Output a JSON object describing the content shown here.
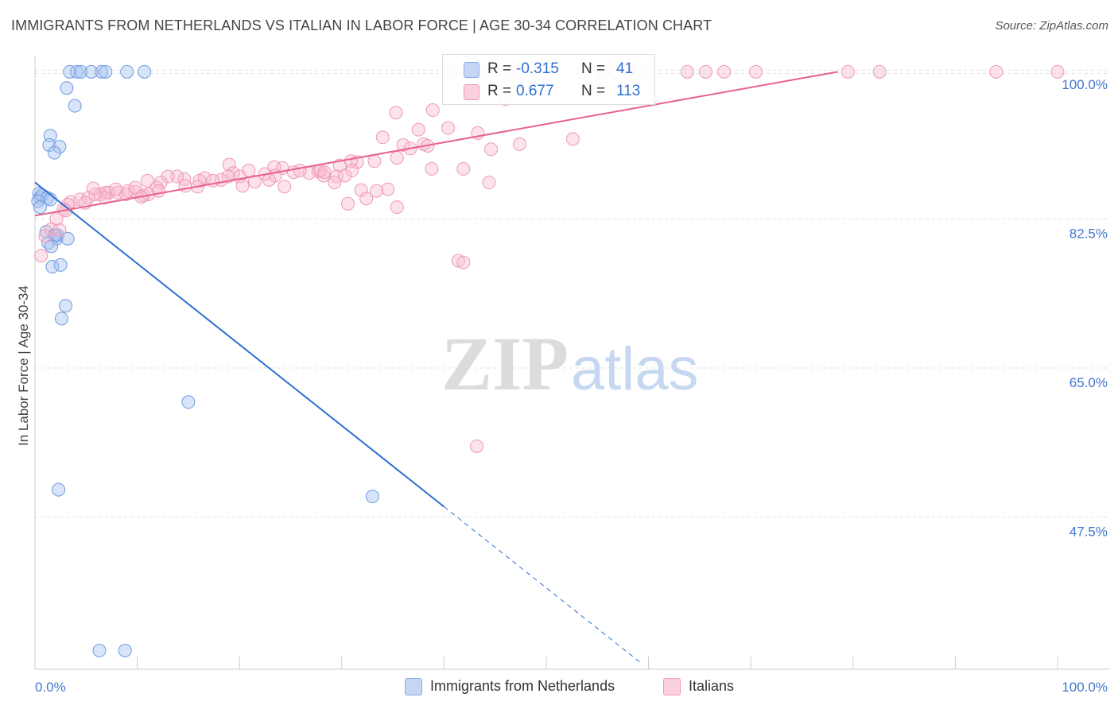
{
  "header": {
    "title": "IMMIGRANTS FROM NETHERLANDS VS ITALIAN IN LABOR FORCE | AGE 30-34 CORRELATION CHART",
    "source": "Source: ZipAtlas.com"
  },
  "watermark": {
    "zip": "ZIP",
    "atlas": "atlas"
  },
  "legend": {
    "r_label": "R =",
    "n_label": "N =",
    "series": [
      {
        "name": "Immigrants from Netherlands",
        "r": "-0.315",
        "n": "41",
        "color": "#a8c4f0",
        "line_color": "#2e6fd1"
      },
      {
        "name": "Italians",
        "r": "0.677",
        "n": "113",
        "color": "#f7b8cc",
        "line_color": "#e8618c"
      }
    ]
  },
  "chart_data": {
    "type": "scatter",
    "title": "IMMIGRANTS FROM NETHERLANDS VS ITALIAN IN LABOR FORCE | AGE 30-34 CORRELATION CHART",
    "xlabel": "",
    "ylabel": "In Labor Force | Age 30-34",
    "xlim": [
      0,
      100
    ],
    "ylim": [
      29.6,
      101.7
    ],
    "x_tick_labels": [
      "0.0%",
      "100.0%"
    ],
    "y_ticks": [
      100.0,
      82.5,
      65.0,
      47.5
    ],
    "y_tick_labels": [
      "100.0%",
      "82.5%",
      "65.0%",
      "47.5%"
    ],
    "grid": true,
    "legend_position": "top-center",
    "series": [
      {
        "name": "Immigrants from Netherlands",
        "color": "#a8c4f0",
        "trend": {
          "x": [
            0,
            40.0
          ],
          "y": [
            86.8,
            48.7
          ]
        },
        "trend_dashed": {
          "x": [
            40.0,
            59.4
          ],
          "y": [
            48.7,
            30.2
          ]
        },
        "points": [
          [
            3.4,
            99.8
          ],
          [
            4.1,
            99.8
          ],
          [
            4.5,
            99.8
          ],
          [
            6.5,
            99.8
          ],
          [
            6.9,
            99.8
          ],
          [
            5.5,
            99.8
          ],
          [
            9.0,
            99.8
          ],
          [
            10.7,
            99.8
          ],
          [
            3.1,
            97.9
          ],
          [
            3.9,
            95.8
          ],
          [
            1.5,
            92.3
          ],
          [
            1.4,
            91.2
          ],
          [
            2.4,
            91.0
          ],
          [
            1.9,
            90.3
          ],
          [
            0.4,
            85.5
          ],
          [
            0.5,
            85.0
          ],
          [
            0.7,
            85.3
          ],
          [
            1.2,
            85.0
          ],
          [
            1.5,
            84.8
          ],
          [
            0.3,
            84.6
          ],
          [
            0.5,
            83.9
          ],
          [
            1.1,
            81.0
          ],
          [
            1.9,
            80.6
          ],
          [
            2.1,
            80.2
          ],
          [
            2.2,
            80.6
          ],
          [
            1.3,
            79.7
          ],
          [
            2.0,
            80.6
          ],
          [
            3.2,
            80.2
          ],
          [
            1.6,
            79.3
          ],
          [
            1.7,
            76.9
          ],
          [
            2.5,
            77.1
          ],
          [
            3.0,
            72.3
          ],
          [
            2.6,
            70.8
          ],
          [
            15.0,
            61.0
          ],
          [
            2.3,
            50.7
          ],
          [
            33.0,
            49.9
          ],
          [
            6.3,
            31.8
          ],
          [
            8.8,
            31.8
          ]
        ]
      },
      {
        "name": "Italians",
        "color": "#f7b8cc",
        "trend": {
          "x": [
            0,
            78.5
          ],
          "y": [
            82.9,
            99.8
          ]
        },
        "points": [
          [
            40.7,
            99.8
          ],
          [
            43.4,
            99.8
          ],
          [
            49.8,
            99.8
          ],
          [
            53.6,
            99.8
          ],
          [
            55.6,
            99.8
          ],
          [
            56.7,
            99.8
          ],
          [
            58.0,
            99.8
          ],
          [
            60.0,
            99.8
          ],
          [
            63.8,
            99.8
          ],
          [
            65.6,
            99.8
          ],
          [
            67.4,
            99.8
          ],
          [
            70.5,
            99.8
          ],
          [
            79.5,
            99.8
          ],
          [
            82.6,
            99.8
          ],
          [
            94.0,
            99.8
          ],
          [
            100.0,
            99.8
          ],
          [
            46.6,
            99.8
          ],
          [
            55.3,
            99.8
          ],
          [
            46.0,
            96.6
          ],
          [
            35.3,
            95.0
          ],
          [
            38.9,
            95.3
          ],
          [
            37.5,
            93.0
          ],
          [
            40.4,
            93.2
          ],
          [
            34.0,
            92.1
          ],
          [
            36.0,
            91.2
          ],
          [
            36.7,
            90.8
          ],
          [
            38.0,
            91.3
          ],
          [
            38.4,
            91.1
          ],
          [
            43.3,
            92.6
          ],
          [
            47.4,
            91.3
          ],
          [
            52.6,
            91.9
          ],
          [
            44.6,
            90.7
          ],
          [
            31.5,
            89.2
          ],
          [
            35.4,
            89.7
          ],
          [
            30.9,
            89.3
          ],
          [
            33.2,
            89.3
          ],
          [
            29.8,
            88.8
          ],
          [
            31.0,
            88.2
          ],
          [
            27.7,
            88.1
          ],
          [
            24.2,
            88.5
          ],
          [
            25.3,
            88.0
          ],
          [
            23.4,
            88.6
          ],
          [
            19.0,
            88.9
          ],
          [
            20.9,
            88.2
          ],
          [
            19.4,
            87.9
          ],
          [
            28.2,
            87.6
          ],
          [
            26.8,
            87.9
          ],
          [
            25.9,
            88.2
          ],
          [
            27.9,
            88.2
          ],
          [
            28.3,
            88.0
          ],
          [
            29.5,
            87.5
          ],
          [
            30.3,
            87.6
          ],
          [
            29.3,
            86.8
          ],
          [
            22.5,
            87.8
          ],
          [
            23.5,
            87.6
          ],
          [
            22.9,
            87.1
          ],
          [
            21.5,
            86.9
          ],
          [
            20.0,
            87.5
          ],
          [
            18.9,
            87.5
          ],
          [
            16.6,
            87.3
          ],
          [
            16.1,
            87.0
          ],
          [
            14.6,
            87.2
          ],
          [
            13.9,
            87.5
          ],
          [
            13.0,
            87.5
          ],
          [
            12.3,
            86.8
          ],
          [
            11.0,
            87.0
          ],
          [
            20.3,
            86.4
          ],
          [
            24.4,
            86.3
          ],
          [
            18.2,
            87.1
          ],
          [
            17.4,
            87.0
          ],
          [
            14.7,
            86.4
          ],
          [
            15.9,
            86.3
          ],
          [
            11.9,
            86.2
          ],
          [
            9.8,
            85.7
          ],
          [
            10.6,
            85.3
          ],
          [
            11.1,
            85.4
          ],
          [
            8.1,
            85.6
          ],
          [
            8.9,
            85.4
          ],
          [
            7.2,
            85.6
          ],
          [
            6.9,
            85.6
          ],
          [
            6.4,
            85.4
          ],
          [
            6.8,
            85.0
          ],
          [
            5.9,
            85.4
          ],
          [
            5.2,
            85.0
          ],
          [
            4.4,
            84.8
          ],
          [
            3.5,
            84.5
          ],
          [
            4.9,
            84.4
          ],
          [
            3.2,
            84.2
          ],
          [
            2.8,
            83.7
          ],
          [
            3.0,
            83.5
          ],
          [
            5.7,
            86.1
          ],
          [
            7.9,
            86.0
          ],
          [
            9.1,
            85.8
          ],
          [
            9.8,
            86.2
          ],
          [
            10.4,
            85.1
          ],
          [
            12.1,
            85.8
          ],
          [
            2.1,
            82.5
          ],
          [
            1.6,
            81.3
          ],
          [
            1.0,
            80.5
          ],
          [
            0.6,
            78.2
          ],
          [
            2.4,
            81.2
          ],
          [
            34.5,
            86.0
          ],
          [
            38.8,
            88.4
          ],
          [
            41.9,
            88.4
          ],
          [
            44.4,
            86.8
          ],
          [
            31.9,
            85.9
          ],
          [
            33.4,
            85.8
          ],
          [
            32.4,
            84.9
          ],
          [
            30.6,
            84.3
          ],
          [
            35.4,
            83.9
          ],
          [
            41.4,
            77.6
          ],
          [
            41.9,
            77.4
          ],
          [
            43.2,
            55.8
          ]
        ]
      }
    ]
  }
}
